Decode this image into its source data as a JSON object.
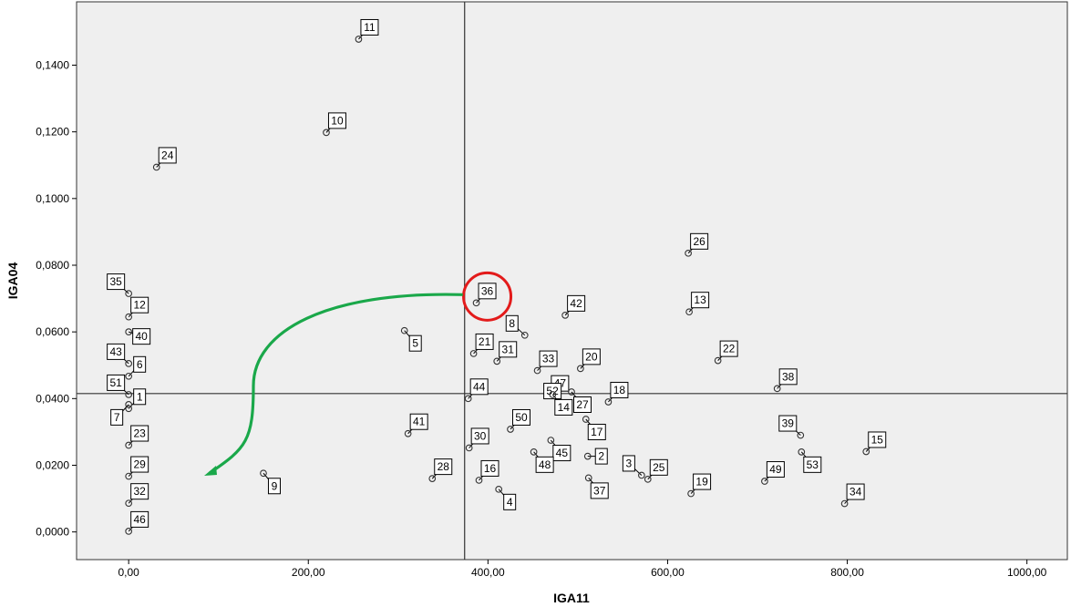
{
  "chart_data": {
    "type": "scatter",
    "xlabel": "IGA11",
    "ylabel": "IGA04",
    "xlim": [
      -58,
      1045
    ],
    "ylim": [
      -0.0083,
      0.159
    ],
    "x_ticks": [
      0,
      200,
      400,
      600,
      800,
      1000
    ],
    "x_tick_labels": [
      "0,00",
      "200,00",
      "400,00",
      "600,00",
      "800,00",
      "1000,00"
    ],
    "y_ticks": [
      0,
      0.02,
      0.04,
      0.06,
      0.08,
      0.1,
      0.12,
      0.14
    ],
    "y_tick_labels": [
      "0,0000",
      "0,0200",
      "0,0400",
      "0,0600",
      "0,0800",
      "0,1000",
      "0,1200",
      "0,1400"
    ],
    "reference_lines": {
      "x": 374,
      "y": 0.0415
    },
    "grid": false,
    "colors": {
      "plot_background": "#efefef",
      "arrow": "#1aa84a",
      "highlight_circle": "#e31b1b",
      "marker": "#333333"
    },
    "highlight": {
      "label": "36",
      "note": "circled in red"
    },
    "arrow": {
      "from_label": "36",
      "direction": "curving down-left",
      "color": "#1aa84a"
    },
    "points": [
      {
        "label": "11",
        "x": 256,
        "y": 0.1478,
        "lpos": "ne"
      },
      {
        "label": "10",
        "x": 220,
        "y": 0.1198,
        "lpos": "ne"
      },
      {
        "label": "24",
        "x": 31,
        "y": 0.1094,
        "lpos": "ne"
      },
      {
        "label": "26",
        "x": 623,
        "y": 0.0836,
        "lpos": "ne"
      },
      {
        "label": "35",
        "x": 0,
        "y": 0.0715,
        "lpos": "nw"
      },
      {
        "label": "36",
        "x": 387,
        "y": 0.0687,
        "lpos": "ne"
      },
      {
        "label": "13",
        "x": 624,
        "y": 0.066,
        "lpos": "ne"
      },
      {
        "label": "12",
        "x": 0,
        "y": 0.0645,
        "lpos": "ne"
      },
      {
        "label": "42",
        "x": 486,
        "y": 0.065,
        "lpos": "ne"
      },
      {
        "label": "40",
        "x": 0,
        "y": 0.06,
        "lpos": "se2"
      },
      {
        "label": "8",
        "x": 441,
        "y": 0.059,
        "lpos": "nw"
      },
      {
        "label": "5",
        "x": 307,
        "y": 0.0604,
        "lpos": "se"
      },
      {
        "label": "21",
        "x": 384,
        "y": 0.0535,
        "lpos": "ne"
      },
      {
        "label": "31",
        "x": 410,
        "y": 0.0512,
        "lpos": "ne"
      },
      {
        "label": "33",
        "x": 455,
        "y": 0.0484,
        "lpos": "ne"
      },
      {
        "label": "20",
        "x": 503,
        "y": 0.049,
        "lpos": "ne"
      },
      {
        "label": "22",
        "x": 656,
        "y": 0.0514,
        "lpos": "ne"
      },
      {
        "label": "43",
        "x": 0,
        "y": 0.0505,
        "lpos": "nw"
      },
      {
        "label": "6",
        "x": 0,
        "y": 0.0467,
        "lpos": "ne"
      },
      {
        "label": "47",
        "x": 468,
        "y": 0.041,
        "lpos": "ne"
      },
      {
        "label": "18",
        "x": 534,
        "y": 0.039,
        "lpos": "ne"
      },
      {
        "label": "38",
        "x": 722,
        "y": 0.043,
        "lpos": "ne"
      },
      {
        "label": "44",
        "x": 378,
        "y": 0.04,
        "lpos": "ne"
      },
      {
        "label": "51",
        "x": 0,
        "y": 0.0412,
        "lpos": "nw"
      },
      {
        "label": "1",
        "x": 0,
        "y": 0.037,
        "lpos": "ne"
      },
      {
        "label": "27",
        "x": 493,
        "y": 0.042,
        "lpos": "se"
      },
      {
        "label": "50",
        "x": 425,
        "y": 0.0308,
        "lpos": "ne"
      },
      {
        "label": "52",
        "x": 486,
        "y": 0.0387,
        "lpos": "nw"
      },
      {
        "label": "14",
        "x": 472,
        "y": 0.0412,
        "lpos": "se"
      },
      {
        "label": "7",
        "x": 0,
        "y": 0.0382,
        "lpos": "sw"
      },
      {
        "label": "39",
        "x": 748,
        "y": 0.029,
        "lpos": "nw"
      },
      {
        "label": "41",
        "x": 311,
        "y": 0.0295,
        "lpos": "ne"
      },
      {
        "label": "17",
        "x": 509,
        "y": 0.0338,
        "lpos": "se"
      },
      {
        "label": "23",
        "x": 0,
        "y": 0.026,
        "lpos": "ne"
      },
      {
        "label": "45",
        "x": 470,
        "y": 0.0275,
        "lpos": "se"
      },
      {
        "label": "30",
        "x": 379,
        "y": 0.0252,
        "lpos": "ne"
      },
      {
        "label": "15",
        "x": 821,
        "y": 0.0241,
        "lpos": "ne"
      },
      {
        "label": "53",
        "x": 749,
        "y": 0.024,
        "lpos": "se"
      },
      {
        "label": "2",
        "x": 511,
        "y": 0.0227,
        "lpos": "e"
      },
      {
        "label": "3",
        "x": 571,
        "y": 0.017,
        "lpos": "nw"
      },
      {
        "label": "25",
        "x": 578,
        "y": 0.0158,
        "lpos": "ne"
      },
      {
        "label": "29",
        "x": 0,
        "y": 0.0167,
        "lpos": "ne"
      },
      {
        "label": "28",
        "x": 338,
        "y": 0.016,
        "lpos": "ne"
      },
      {
        "label": "16",
        "x": 390,
        "y": 0.0155,
        "lpos": "ne"
      },
      {
        "label": "48",
        "x": 451,
        "y": 0.024,
        "lpos": "se"
      },
      {
        "label": "37",
        "x": 512,
        "y": 0.0162,
        "lpos": "se"
      },
      {
        "label": "49",
        "x": 708,
        "y": 0.0152,
        "lpos": "ne"
      },
      {
        "label": "19",
        "x": 626,
        "y": 0.0115,
        "lpos": "ne"
      },
      {
        "label": "9",
        "x": 150,
        "y": 0.0176,
        "lpos": "se"
      },
      {
        "label": "4",
        "x": 412,
        "y": 0.0128,
        "lpos": "se"
      },
      {
        "label": "32",
        "x": 0,
        "y": 0.0086,
        "lpos": "ne"
      },
      {
        "label": "34",
        "x": 797,
        "y": 0.0085,
        "lpos": "ne"
      },
      {
        "label": "46",
        "x": 0,
        "y": 0.0002,
        "lpos": "ne"
      }
    ]
  }
}
